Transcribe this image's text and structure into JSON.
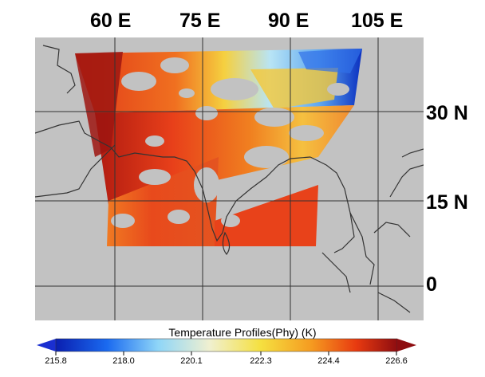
{
  "map": {
    "longitude_labels": [
      "60 E",
      "75 E",
      "90 E",
      "105 E"
    ],
    "latitude_labels": [
      "30 N",
      "15 N",
      "0"
    ],
    "background_color": "#c2c2c2",
    "coastline_color": "#333333",
    "grid_color": "#333333",
    "projection": "equirectangular"
  },
  "colorbar": {
    "title": "Temperature Profiles(Phy) (K)",
    "ticks": [
      "215.8",
      "218.0",
      "220.1",
      "222.3",
      "224.4",
      "226.6"
    ],
    "min": 215.8,
    "max": 226.6,
    "colormap": [
      "#0a1fb0",
      "#1a6af0",
      "#8fd6f8",
      "#f0f0d0",
      "#f5e040",
      "#f59a20",
      "#e83a10",
      "#8e0d10"
    ],
    "left_arrow_color": "#1a2fd0",
    "right_arrow_color": "#8e0d10"
  }
}
